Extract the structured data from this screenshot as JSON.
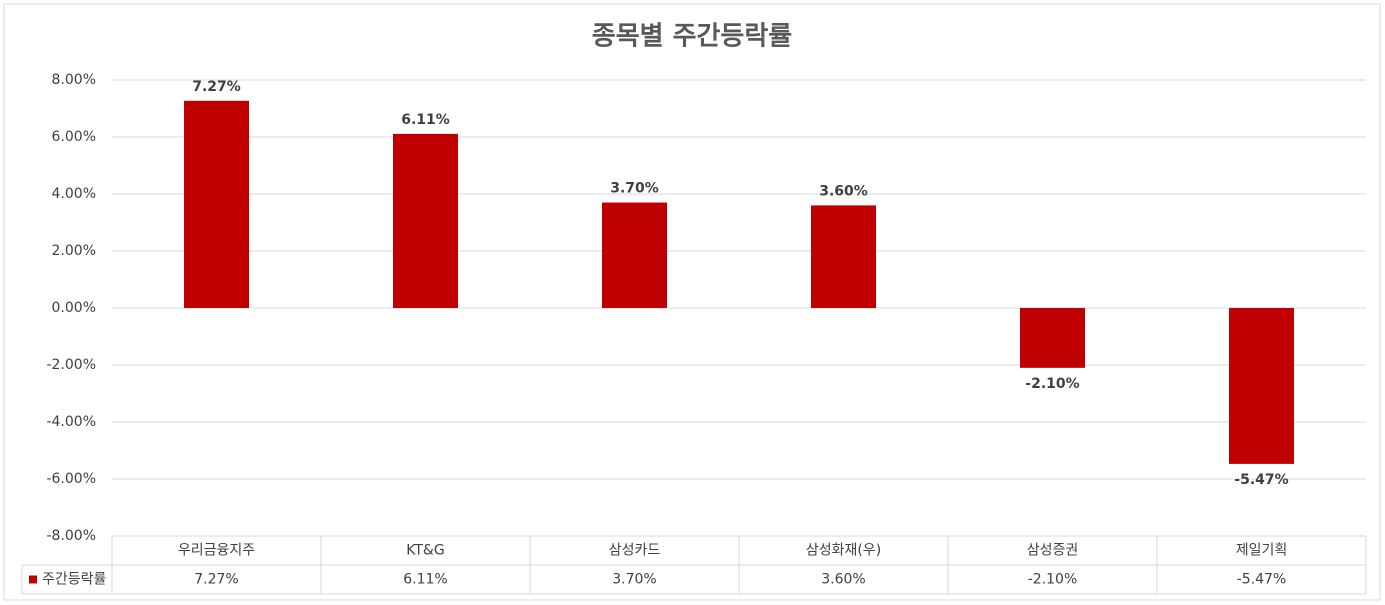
{
  "chart_data": {
    "type": "bar",
    "title": "종목별 주간등락률",
    "categories": [
      "우리금융지주",
      "KT&G",
      "삼성카드",
      "삼성화재(우)",
      "삼성증권",
      "제일기획"
    ],
    "series": [
      {
        "name": "주간등락률",
        "color": "#c00000",
        "values": [
          7.27,
          6.11,
          3.7,
          3.6,
          -2.1,
          -5.47
        ],
        "value_labels": [
          "7.27%",
          "6.11%",
          "3.70%",
          "3.60%",
          "-2.10%",
          "-5.47%"
        ]
      }
    ],
    "ylim": [
      -8,
      8
    ],
    "yticks": [
      {
        "value": -8,
        "label": "-8.00%"
      },
      {
        "value": -6,
        "label": "-6.00%"
      },
      {
        "value": -4,
        "label": "-4.00%"
      },
      {
        "value": -2,
        "label": "-2.00%"
      },
      {
        "value": 0,
        "label": "0.00%"
      },
      {
        "value": 2,
        "label": "2.00%"
      },
      {
        "value": 4,
        "label": "4.00%"
      },
      {
        "value": 6,
        "label": "6.00%"
      },
      {
        "value": 8,
        "label": "8.00%"
      }
    ],
    "grid": true
  }
}
